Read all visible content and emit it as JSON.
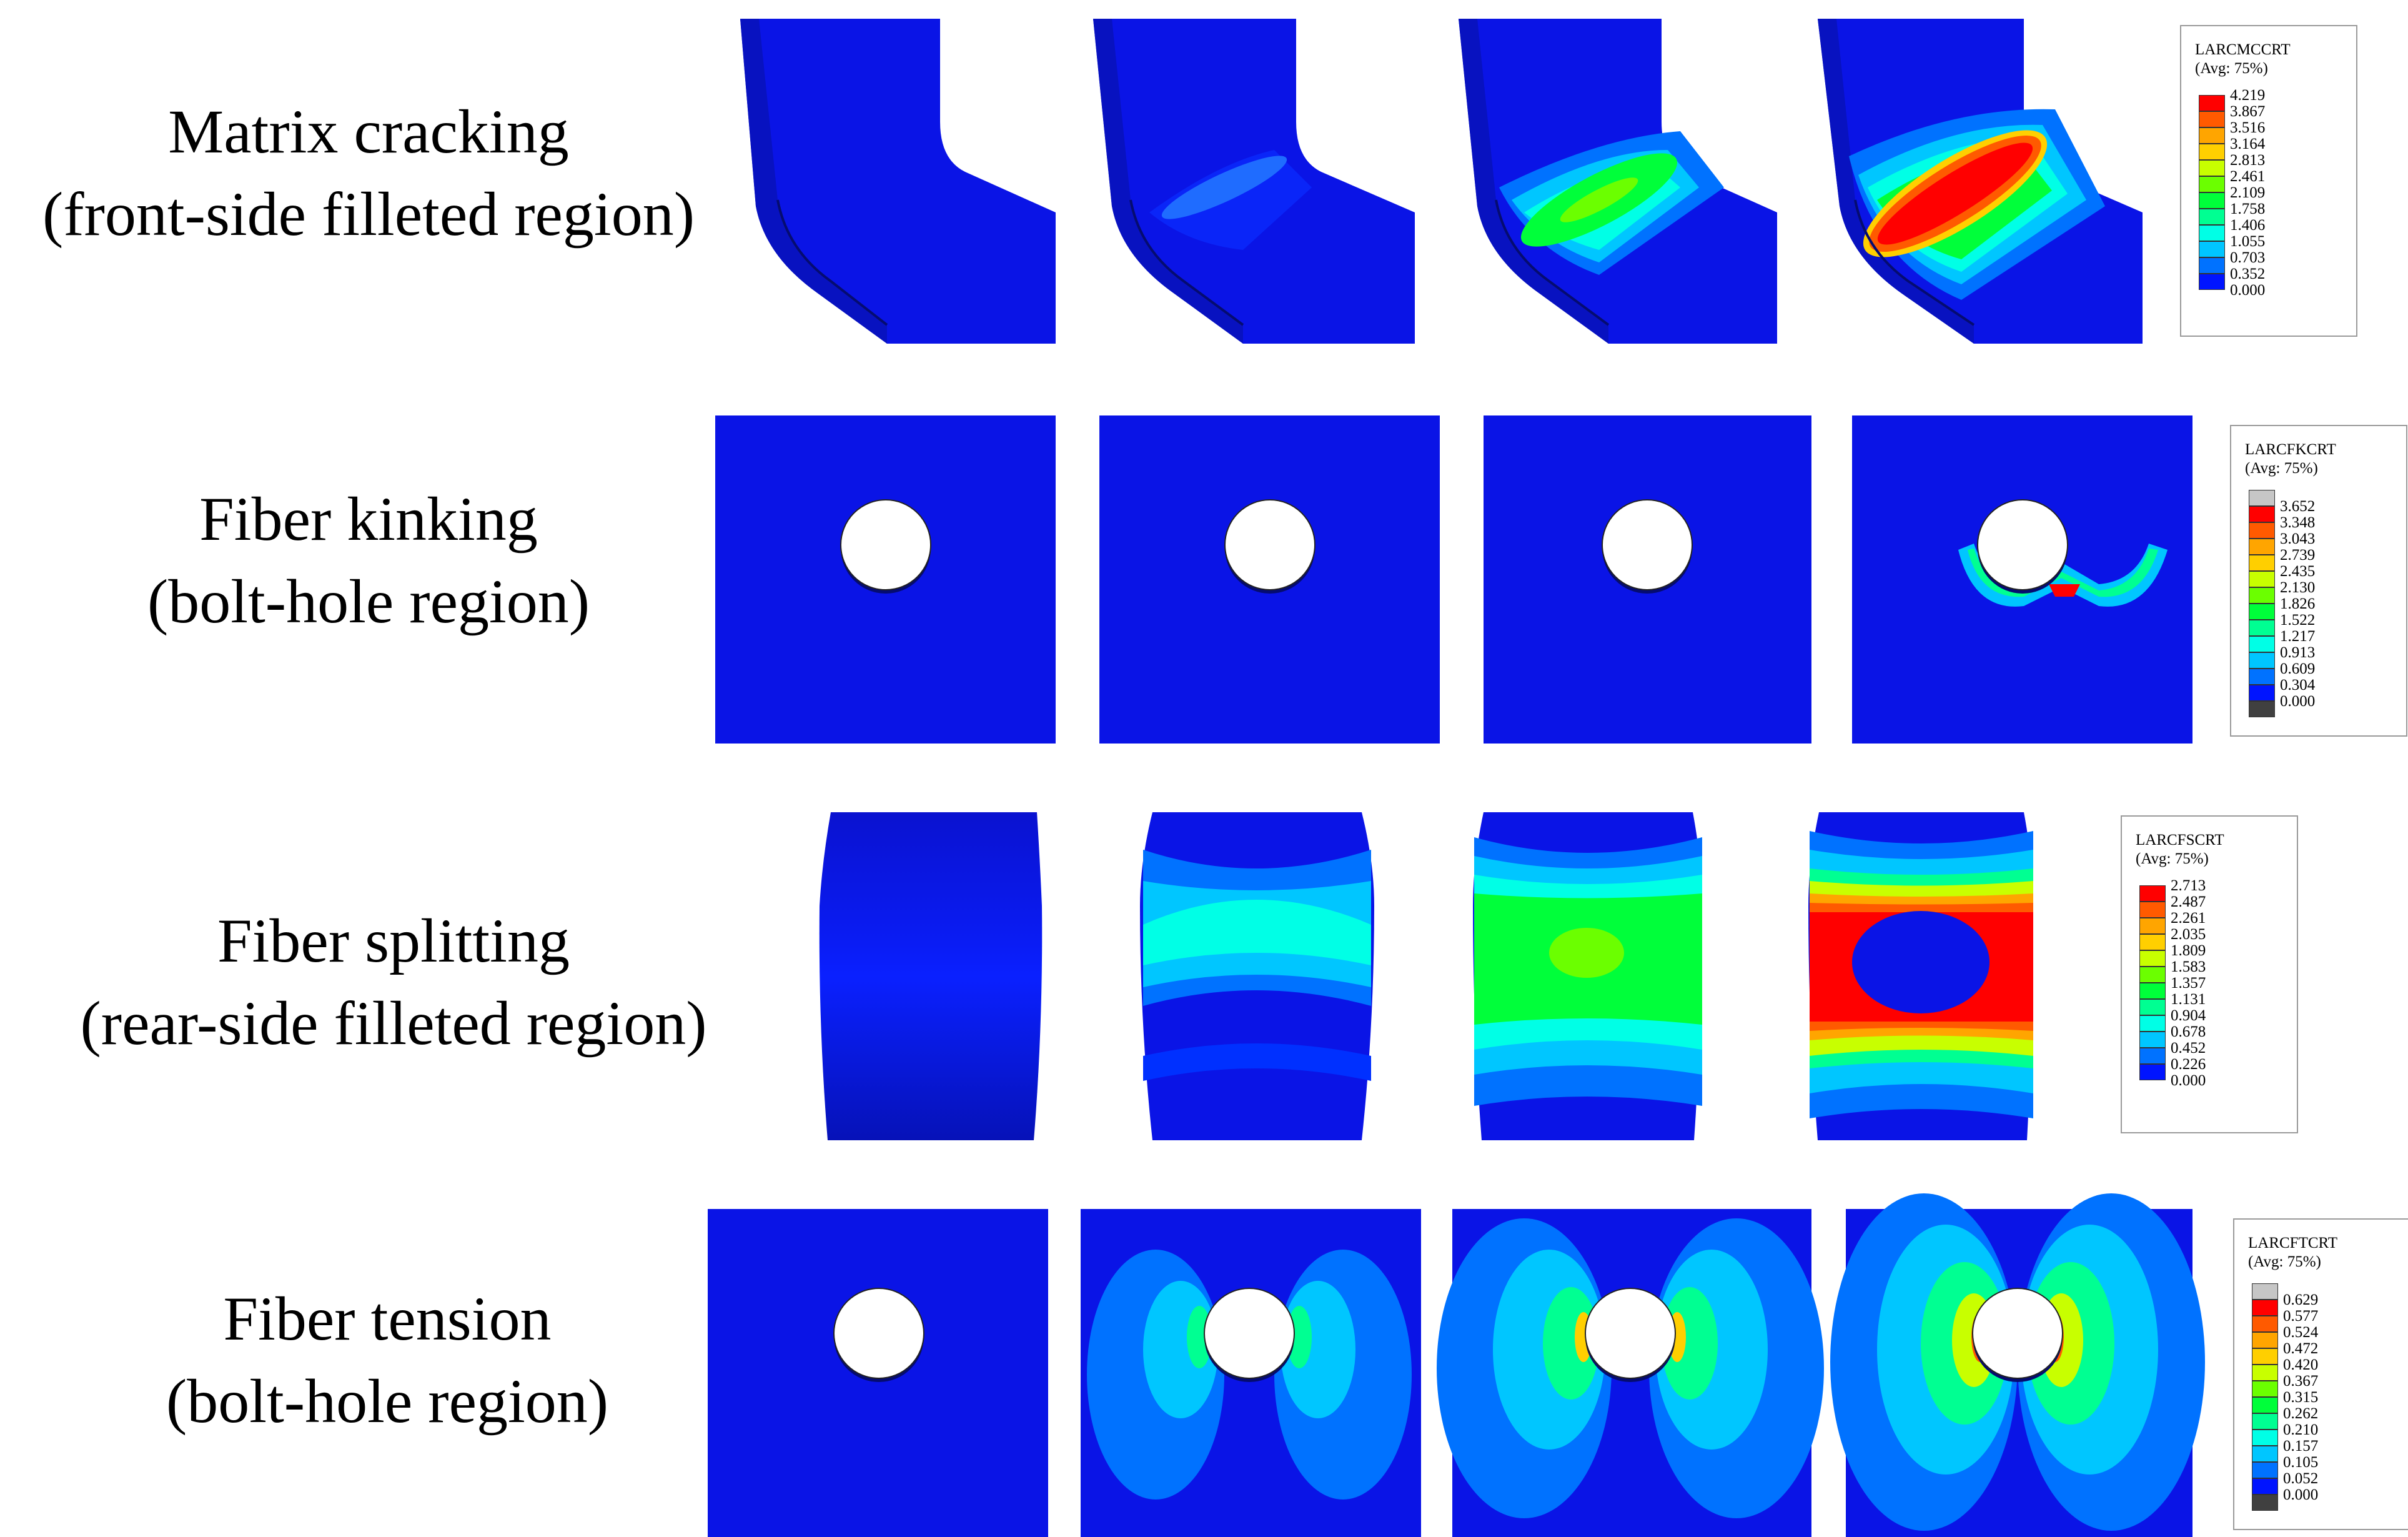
{
  "rows": [
    {
      "title": "Matrix cracking",
      "subtitle": "(front-side filleted region)"
    },
    {
      "title": "Fiber kinking",
      "subtitle": "(bolt-hole region)"
    },
    {
      "title": "Fiber splitting",
      "subtitle": "(rear-side filleted region)"
    },
    {
      "title": "Fiber tension",
      "subtitle": "(bolt-hole region)"
    }
  ],
  "legends": [
    {
      "variable": "LARCMCCRT",
      "averaging": "(Avg: 75%)",
      "values": [
        "4.219",
        "3.867",
        "3.516",
        "3.164",
        "2.813",
        "2.461",
        "2.109",
        "1.758",
        "1.406",
        "1.055",
        "0.703",
        "0.352",
        "0.000"
      ],
      "has_extremes": false
    },
    {
      "variable": "LARCFKCRT",
      "averaging": "(Avg: 75%)",
      "values": [
        "3.652",
        "3.348",
        "3.043",
        "2.739",
        "2.435",
        "2.130",
        "1.826",
        "1.522",
        "1.217",
        "0.913",
        "0.609",
        "0.304",
        "0.000"
      ],
      "has_extremes": true
    },
    {
      "variable": "LARCFSCRT",
      "averaging": "(Avg: 75%)",
      "values": [
        "2.713",
        "2.487",
        "2.261",
        "2.035",
        "1.809",
        "1.583",
        "1.357",
        "1.131",
        "0.904",
        "0.678",
        "0.452",
        "0.226",
        "0.000"
      ],
      "has_extremes": false
    },
    {
      "variable": "LARCFTCRT",
      "averaging": "(Avg: 75%)",
      "values": [
        "0.629",
        "0.577",
        "0.524",
        "0.472",
        "0.420",
        "0.367",
        "0.315",
        "0.262",
        "0.210",
        "0.157",
        "0.105",
        "0.052",
        "0.000"
      ],
      "has_extremes": true
    }
  ],
  "colors": {
    "contour": [
      "#ff0000",
      "#ff5a00",
      "#ffa500",
      "#ffcf00",
      "#c8ff00",
      "#6bff00",
      "#00ff3a",
      "#00ff92",
      "#00ffe6",
      "#00c6ff",
      "#0072ff",
      "#0014ff"
    ],
    "above_max": "#c6c6c6",
    "below_min": "#404040",
    "base": "#0a14e6"
  }
}
